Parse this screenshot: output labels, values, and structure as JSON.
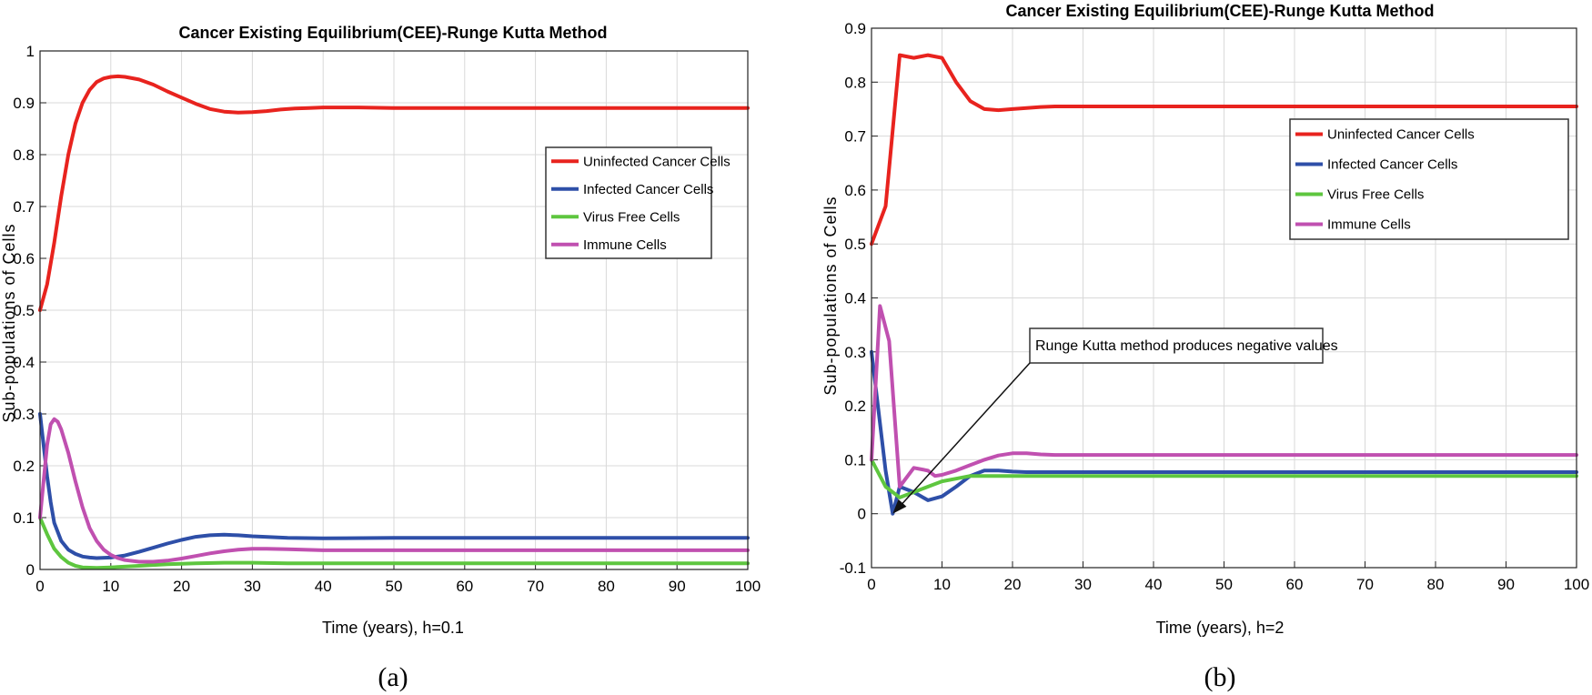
{
  "chart_data": [
    {
      "panel": "(a)",
      "type": "line",
      "title": "Cancer Existing Equilibrium(CEE)-Runge Kutta Method",
      "xlabel": "Time (years), h=0.1",
      "ylabel": "Sub-populations of Cells",
      "xlim": [
        0,
        100
      ],
      "ylim": [
        0,
        1
      ],
      "xticks": [
        "0",
        "10",
        "20",
        "30",
        "40",
        "50",
        "60",
        "70",
        "80",
        "90",
        "100"
      ],
      "yticks": [
        "0",
        "0.1",
        "0.2",
        "0.3",
        "0.4",
        "0.5",
        "0.6",
        "0.7",
        "0.8",
        "0.9",
        "1"
      ],
      "grid": true,
      "legend_position": "upper right",
      "series": [
        {
          "name": "Uninfected Cancer Cells",
          "color": "#e8231e",
          "x": [
            0,
            1,
            2,
            3,
            4,
            5,
            6,
            7,
            8,
            9,
            10,
            11,
            12,
            14,
            16,
            18,
            20,
            22,
            24,
            26,
            28,
            30,
            32,
            34,
            36,
            38,
            40,
            45,
            50,
            60,
            70,
            80,
            90,
            100
          ],
          "y": [
            0.5,
            0.55,
            0.63,
            0.72,
            0.8,
            0.86,
            0.9,
            0.925,
            0.94,
            0.947,
            0.95,
            0.951,
            0.95,
            0.945,
            0.935,
            0.922,
            0.91,
            0.898,
            0.888,
            0.883,
            0.881,
            0.882,
            0.884,
            0.887,
            0.889,
            0.89,
            0.891,
            0.891,
            0.89,
            0.89,
            0.89,
            0.89,
            0.89,
            0.89
          ]
        },
        {
          "name": "Infected Cancer Cells",
          "color": "#2e4fa8",
          "x": [
            0,
            0.5,
            1,
            1.5,
            2,
            3,
            4,
            5,
            6,
            7,
            8,
            10,
            12,
            14,
            16,
            18,
            20,
            22,
            24,
            26,
            28,
            30,
            35,
            40,
            50,
            60,
            70,
            80,
            90,
            100
          ],
          "y": [
            0.3,
            0.24,
            0.18,
            0.13,
            0.09,
            0.055,
            0.038,
            0.03,
            0.025,
            0.023,
            0.022,
            0.023,
            0.027,
            0.034,
            0.042,
            0.05,
            0.057,
            0.063,
            0.066,
            0.067,
            0.066,
            0.064,
            0.061,
            0.06,
            0.061,
            0.061,
            0.061,
            0.061,
            0.061,
            0.061
          ]
        },
        {
          "name": "Virus Free Cells",
          "color": "#5ec63f",
          "x": [
            0,
            1,
            2,
            3,
            4,
            5,
            6,
            8,
            10,
            14,
            18,
            22,
            26,
            30,
            35,
            40,
            50,
            100
          ],
          "y": [
            0.1,
            0.068,
            0.04,
            0.024,
            0.013,
            0.007,
            0.004,
            0.003,
            0.004,
            0.007,
            0.01,
            0.012,
            0.013,
            0.013,
            0.012,
            0.012,
            0.012,
            0.012
          ]
        },
        {
          "name": "Immune Cells",
          "color": "#c050b0",
          "x": [
            0,
            0.5,
            1,
            1.5,
            2,
            2.5,
            3,
            4,
            5,
            6,
            7,
            8,
            9,
            10,
            11,
            12,
            14,
            16,
            18,
            20,
            22,
            24,
            26,
            28,
            30,
            32,
            35,
            40,
            50,
            60,
            70,
            80,
            90,
            100
          ],
          "y": [
            0.1,
            0.17,
            0.24,
            0.28,
            0.29,
            0.285,
            0.27,
            0.225,
            0.17,
            0.12,
            0.08,
            0.055,
            0.038,
            0.028,
            0.022,
            0.018,
            0.015,
            0.015,
            0.017,
            0.021,
            0.026,
            0.031,
            0.035,
            0.038,
            0.04,
            0.04,
            0.039,
            0.037,
            0.037,
            0.037,
            0.037,
            0.037,
            0.037,
            0.037
          ]
        }
      ]
    },
    {
      "panel": "(b)",
      "type": "line",
      "title": "Cancer Existing Equilibrium(CEE)-Runge Kutta Method",
      "xlabel": "Time (years), h=2",
      "ylabel": "Sub-populations of Cells",
      "xlim": [
        0,
        100
      ],
      "ylim": [
        -0.1,
        0.9
      ],
      "xticks": [
        "0",
        "10",
        "20",
        "30",
        "40",
        "50",
        "60",
        "70",
        "80",
        "90",
        "100"
      ],
      "yticks": [
        "-0.1",
        "0",
        "0.1",
        "0.2",
        "0.3",
        "0.4",
        "0.5",
        "0.6",
        "0.7",
        "0.8",
        "0.9"
      ],
      "grid": true,
      "legend_position": "upper right",
      "annotation": {
        "text": "Runge Kutta method produces negative values",
        "points_to": [
          3,
          0
        ]
      },
      "series": [
        {
          "name": "Uninfected Cancer Cells",
          "color": "#e8231e",
          "x": [
            0,
            2,
            4,
            6,
            8,
            10,
            12,
            14,
            16,
            18,
            20,
            22,
            24,
            26,
            28,
            30,
            40,
            50,
            60,
            70,
            80,
            90,
            100
          ],
          "y": [
            0.5,
            0.57,
            0.85,
            0.845,
            0.85,
            0.845,
            0.8,
            0.765,
            0.75,
            0.748,
            0.75,
            0.752,
            0.754,
            0.755,
            0.755,
            0.755,
            0.755,
            0.755,
            0.755,
            0.755,
            0.755,
            0.755,
            0.755
          ]
        },
        {
          "name": "Infected Cancer Cells",
          "color": "#2e4fa8",
          "x": [
            0,
            2,
            3,
            4,
            6,
            8,
            10,
            12,
            14,
            16,
            18,
            20,
            22,
            24,
            26,
            30,
            40,
            50,
            60,
            70,
            80,
            90,
            100
          ],
          "y": [
            0.3,
            0.08,
            0.0,
            0.05,
            0.04,
            0.025,
            0.032,
            0.05,
            0.07,
            0.08,
            0.08,
            0.078,
            0.077,
            0.077,
            0.077,
            0.077,
            0.077,
            0.077,
            0.077,
            0.077,
            0.077,
            0.077,
            0.077
          ]
        },
        {
          "name": "Virus Free Cells",
          "color": "#5ec63f",
          "x": [
            0,
            2,
            4,
            6,
            8,
            10,
            12,
            14,
            16,
            18,
            20,
            22,
            24,
            26,
            30,
            40,
            50,
            60,
            70,
            80,
            90,
            100
          ],
          "y": [
            0.1,
            0.05,
            0.03,
            0.04,
            0.05,
            0.06,
            0.065,
            0.07,
            0.07,
            0.07,
            0.07,
            0.07,
            0.07,
            0.07,
            0.07,
            0.07,
            0.07,
            0.07,
            0.07,
            0.07,
            0.07,
            0.07
          ]
        },
        {
          "name": "Immune Cells",
          "color": "#c050b0",
          "x": [
            0,
            1.2,
            2.5,
            4,
            6,
            8,
            9,
            10,
            12,
            14,
            16,
            18,
            20,
            22,
            24,
            26,
            30,
            40,
            50,
            60,
            70,
            80,
            90,
            100
          ],
          "y": [
            0.1,
            0.385,
            0.32,
            0.05,
            0.085,
            0.08,
            0.07,
            0.072,
            0.08,
            0.09,
            0.1,
            0.108,
            0.112,
            0.112,
            0.11,
            0.109,
            0.109,
            0.109,
            0.109,
            0.109,
            0.109,
            0.109,
            0.109,
            0.109
          ]
        }
      ]
    }
  ],
  "captions": [
    "(a)",
    "(b)"
  ]
}
